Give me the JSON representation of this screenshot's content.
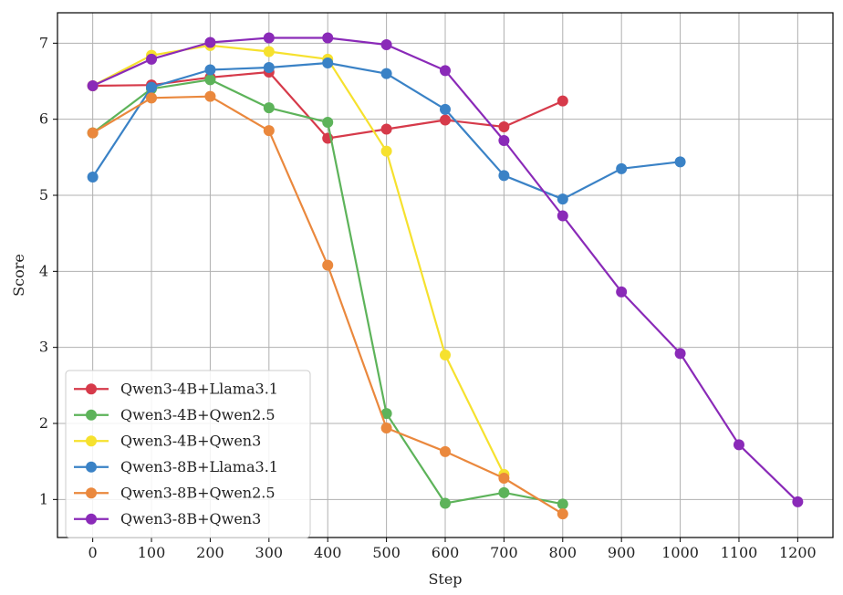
{
  "chart_data": {
    "type": "line",
    "title": "",
    "xlabel": "Step",
    "ylabel": "Score",
    "xlim": [
      -60,
      1260
    ],
    "ylim": [
      0.5,
      7.4
    ],
    "x_ticks": [
      0,
      100,
      200,
      300,
      400,
      500,
      600,
      700,
      800,
      900,
      1000,
      1100,
      1200
    ],
    "y_ticks": [
      1,
      2,
      3,
      4,
      5,
      6,
      7
    ],
    "grid": true,
    "legend_position": "lower-left",
    "series": [
      {
        "name": "Qwen3-4B+Llama3.1",
        "color": "#d63a4a",
        "x": [
          0,
          100,
          200,
          300,
          400,
          500,
          600,
          700,
          800
        ],
        "y": [
          6.44,
          6.45,
          6.55,
          6.62,
          5.75,
          5.87,
          5.99,
          5.9,
          6.24
        ]
      },
      {
        "name": "Qwen3-4B+Qwen2.5",
        "color": "#5db35a",
        "x": [
          0,
          100,
          200,
          300,
          400,
          500,
          600,
          700,
          800
        ],
        "y": [
          5.82,
          6.4,
          6.52,
          6.15,
          5.96,
          2.13,
          0.95,
          1.09,
          0.94
        ]
      },
      {
        "name": "Qwen3-4B+Qwen3",
        "color": "#f6e12e",
        "x": [
          0,
          100,
          200,
          300,
          400,
          500,
          600,
          700
        ],
        "y": [
          6.44,
          6.84,
          6.97,
          6.89,
          6.79,
          5.58,
          2.9,
          1.33
        ]
      },
      {
        "name": "Qwen3-8B+Llama3.1",
        "color": "#3a82c6",
        "x": [
          0,
          100,
          200,
          300,
          400,
          500,
          600,
          700,
          800,
          900,
          1000
        ],
        "y": [
          5.24,
          6.42,
          6.65,
          6.68,
          6.74,
          6.6,
          6.13,
          5.26,
          4.95,
          5.35,
          5.44
        ]
      },
      {
        "name": "Qwen3-8B+Qwen2.5",
        "color": "#ea883d",
        "x": [
          0,
          100,
          200,
          300,
          400,
          500,
          600,
          700,
          800
        ],
        "y": [
          5.82,
          6.28,
          6.3,
          5.85,
          4.08,
          1.94,
          1.63,
          1.28,
          0.81
        ]
      },
      {
        "name": "Qwen3-8B+Qwen3",
        "color": "#8a2ab8",
        "x": [
          0,
          100,
          200,
          300,
          400,
          500,
          600,
          700,
          800,
          900,
          1000,
          1100,
          1200
        ],
        "y": [
          6.44,
          6.79,
          7.01,
          7.07,
          7.07,
          6.98,
          6.64,
          5.72,
          4.73,
          3.73,
          2.92,
          1.72,
          0.97
        ]
      }
    ]
  }
}
